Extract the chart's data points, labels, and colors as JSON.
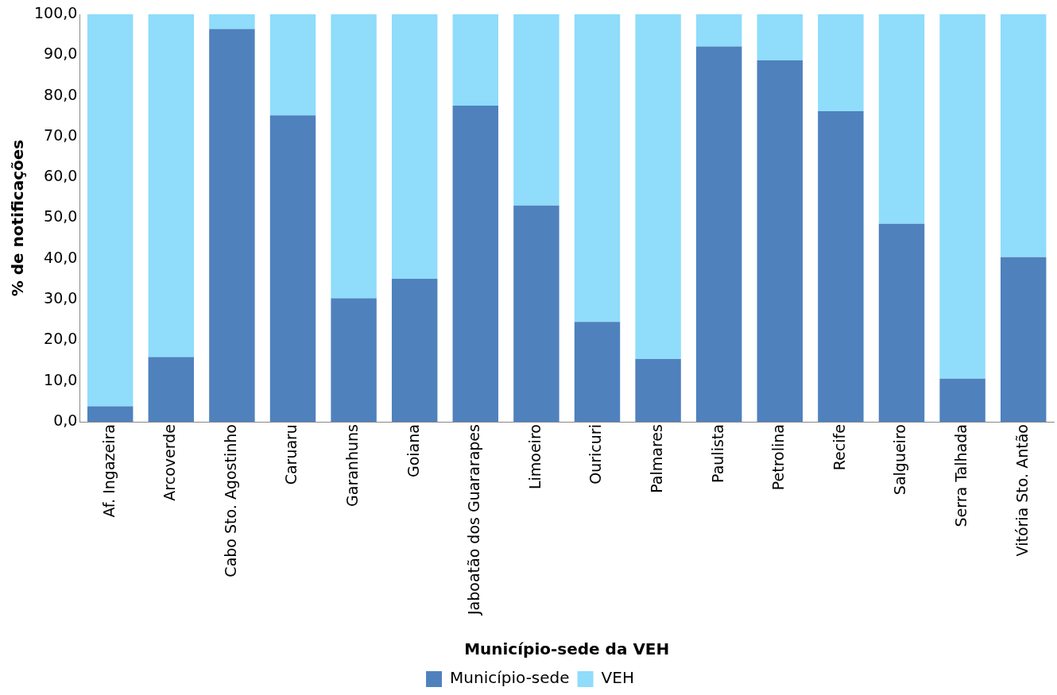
{
  "chart_data": {
    "type": "bar",
    "stacked": true,
    "xlabel": "Município-sede da VEH",
    "ylabel": "% de notificações",
    "categories": [
      "Af. Ingazeira",
      "Arcoverde",
      "Cabo Sto. Agostinho",
      "Caruaru",
      "Garanhuns",
      "Goiana",
      "Jaboatão dos Guararapes",
      "Limoeiro",
      "Ouricuri",
      "Palmares",
      "Paulista",
      "Petrolina",
      "Recife",
      "Salgueiro",
      "Serra Talhada",
      "Vitória Sto. Antão"
    ],
    "series": [
      {
        "name": "Município-sede",
        "color": "#4f81bd",
        "values": [
          3.8,
          15.9,
          96.4,
          75.2,
          30.3,
          35.1,
          77.6,
          53.1,
          24.5,
          15.4,
          92.1,
          88.7,
          76.2,
          48.6,
          10.6,
          40.4
        ]
      },
      {
        "name": "VEH",
        "color": "#8fdcfb",
        "values": [
          96.2,
          84.1,
          3.6,
          24.8,
          69.7,
          64.9,
          22.4,
          46.9,
          75.5,
          84.6,
          7.9,
          11.3,
          23.8,
          51.4,
          89.4,
          59.6
        ]
      }
    ],
    "ylim": [
      0,
      100
    ],
    "yticks": [
      {
        "value": 0,
        "label": "0,0"
      },
      {
        "value": 10,
        "label": "10,0"
      },
      {
        "value": 20,
        "label": "20,0"
      },
      {
        "value": 30,
        "label": "30,0"
      },
      {
        "value": 40,
        "label": "40,0"
      },
      {
        "value": 50,
        "label": "50,0"
      },
      {
        "value": 60,
        "label": "60,0"
      },
      {
        "value": 70,
        "label": "70,0"
      },
      {
        "value": 80,
        "label": "80,0"
      },
      {
        "value": 90,
        "label": "90,0"
      },
      {
        "value": 100,
        "label": "100,0"
      }
    ],
    "grid": false,
    "legend": "bottom"
  }
}
